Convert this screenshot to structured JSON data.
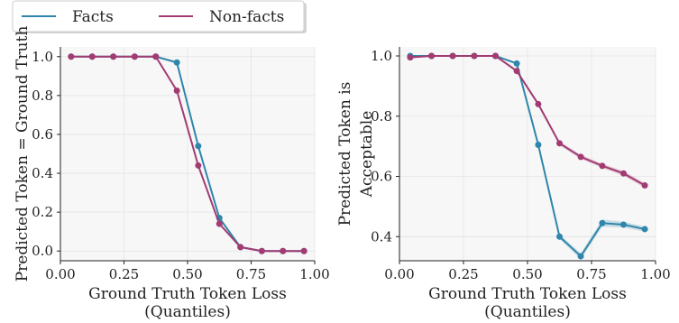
{
  "legend": {
    "entries": [
      {
        "name": "Facts",
        "color": "#2e86ab"
      },
      {
        "name": "Non-facts",
        "color": "#a23b72"
      }
    ],
    "placement": "top-left"
  },
  "chart_data": [
    {
      "type": "line",
      "xlabel": [
        "Ground Truth Token Loss",
        "(Quantiles)"
      ],
      "ylabel": [
        "Predicted Token = Ground Truth"
      ],
      "xlim": [
        0.0,
        1.0
      ],
      "ylim": [
        -0.05,
        1.05
      ],
      "xticks": [
        0.0,
        0.25,
        0.5,
        0.75,
        1.0
      ],
      "xtick_labels": [
        "0.00",
        "0.25",
        "0.50",
        "0.75",
        "1.00"
      ],
      "yticks": [
        0.0,
        0.2,
        0.4,
        0.6,
        0.8,
        1.0
      ],
      "ytick_labels": [
        "0.0",
        "0.2",
        "0.4",
        "0.6",
        "0.8",
        "1.0"
      ],
      "grid": true,
      "x": [
        0.042,
        0.125,
        0.208,
        0.292,
        0.375,
        0.458,
        0.542,
        0.625,
        0.708,
        0.792,
        0.875,
        0.958
      ],
      "series": [
        {
          "name": "Facts",
          "color": "#2e86ab",
          "values": [
            1.0,
            1.0,
            1.0,
            1.0,
            1.0,
            0.97,
            0.54,
            0.17,
            0.02,
            0.0,
            0.0,
            0.0
          ],
          "band": [
            0,
            0,
            0,
            0,
            0,
            0.005,
            0.005,
            0.005,
            0.003,
            0,
            0,
            0
          ]
        },
        {
          "name": "Non-facts",
          "color": "#a23b72",
          "values": [
            1.0,
            1.0,
            1.0,
            1.0,
            1.0,
            0.825,
            0.44,
            0.14,
            0.02,
            0.0,
            0.0,
            0.0
          ],
          "band": [
            0,
            0,
            0,
            0,
            0,
            0.005,
            0.005,
            0.005,
            0.003,
            0,
            0,
            0
          ]
        }
      ]
    },
    {
      "type": "line",
      "xlabel": [
        "Ground Truth Token Loss",
        "(Quantiles)"
      ],
      "ylabel": [
        "Predicted Token is",
        "Acceptable"
      ],
      "xlim": [
        0.0,
        1.0
      ],
      "ylim": [
        0.32,
        1.03
      ],
      "xticks": [
        0.0,
        0.25,
        0.5,
        0.75,
        1.0
      ],
      "xtick_labels": [
        "0.00",
        "0.25",
        "0.50",
        "0.75",
        "1.00"
      ],
      "yticks": [
        0.4,
        0.6,
        0.8,
        1.0
      ],
      "ytick_labels": [
        "0.4",
        "0.6",
        "0.8",
        "1.0"
      ],
      "grid": true,
      "x": [
        0.042,
        0.125,
        0.208,
        0.292,
        0.375,
        0.458,
        0.542,
        0.625,
        0.708,
        0.792,
        0.875,
        0.958
      ],
      "series": [
        {
          "name": "Facts",
          "color": "#2e86ab",
          "values": [
            1.0,
            1.0,
            1.0,
            1.0,
            1.0,
            0.975,
            0.705,
            0.4,
            0.335,
            0.445,
            0.44,
            0.425
          ],
          "band": [
            0.003,
            0.002,
            0.002,
            0.002,
            0.002,
            0.004,
            0.006,
            0.008,
            0.01,
            0.012,
            0.01,
            0.008
          ]
        },
        {
          "name": "Non-facts",
          "color": "#a23b72",
          "values": [
            0.995,
            1.0,
            1.0,
            1.0,
            1.0,
            0.95,
            0.84,
            0.71,
            0.665,
            0.635,
            0.61,
            0.57
          ],
          "band": [
            0.003,
            0.002,
            0.002,
            0.002,
            0.002,
            0.005,
            0.006,
            0.007,
            0.007,
            0.007,
            0.008,
            0.008
          ]
        }
      ]
    }
  ]
}
